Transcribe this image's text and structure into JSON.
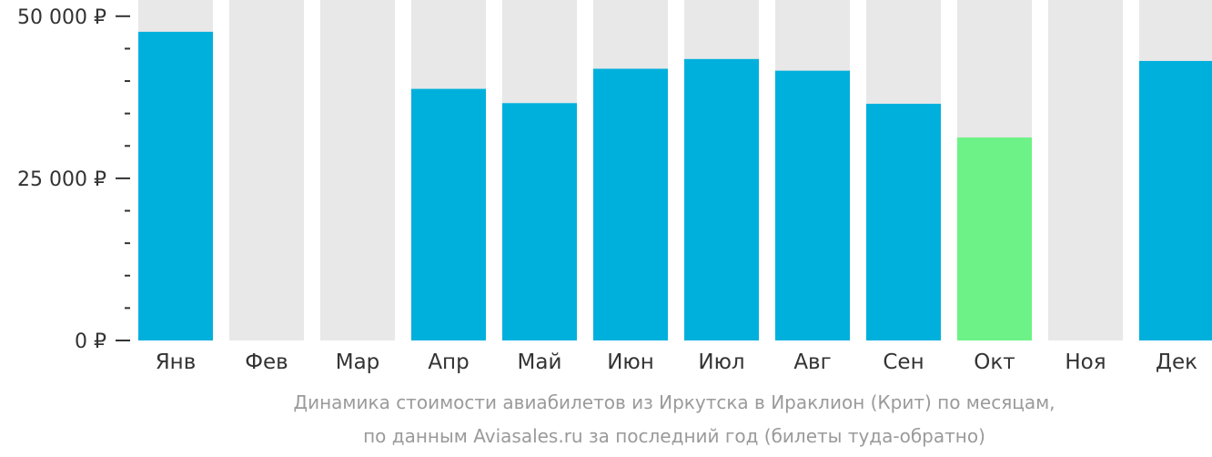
{
  "chart_data": {
    "type": "bar",
    "categories": [
      "Янв",
      "Фев",
      "Мар",
      "Апр",
      "Май",
      "Июн",
      "Июл",
      "Авг",
      "Сен",
      "Окт",
      "Ноя",
      "Дек"
    ],
    "values": [
      47600,
      null,
      null,
      38800,
      36600,
      41900,
      43400,
      41600,
      36500,
      31300,
      null,
      43100
    ],
    "ylim": [
      0,
      52500
    ],
    "yticks": [
      {
        "value": 50000,
        "label": "50 000 ₽"
      },
      {
        "value": 25000,
        "label": "25 000 ₽"
      },
      {
        "value": 0,
        "label": "0 ₽"
      }
    ],
    "minor_tick_step": 5000,
    "highlight_index": 9,
    "colors": {
      "bar": "#00b0dc",
      "highlight": "#6cf286",
      "background": "#e8e8e8",
      "axis_text": "#333333"
    }
  },
  "caption": {
    "line1": "Динамика стоимости авиабилетов из Иркутска в Ираклион (Крит) по месяцам,",
    "line2": "по данным Aviasales.ru за последний год (билеты туда-обратно)"
  }
}
